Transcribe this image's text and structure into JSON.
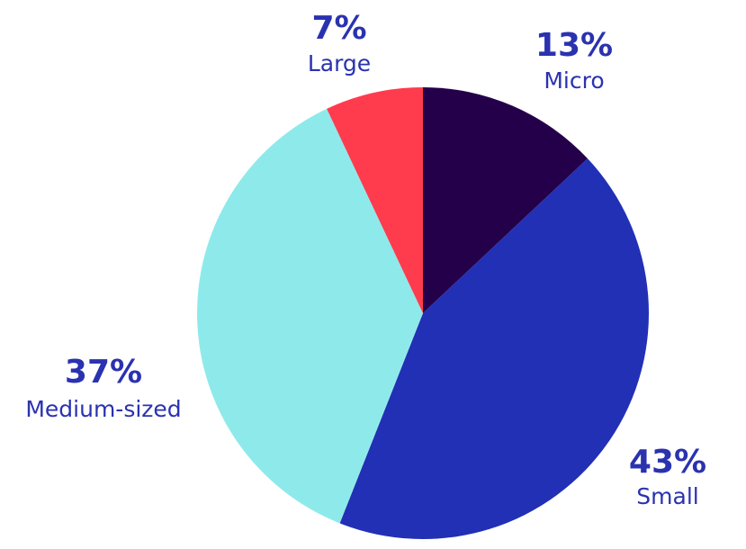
{
  "chart_data": {
    "type": "pie",
    "categories": [
      "Micro",
      "Small",
      "Medium-sized",
      "Large"
    ],
    "values": [
      13,
      43,
      37,
      7
    ],
    "value_labels": [
      "13%",
      "43%",
      "37%",
      "7%"
    ],
    "colors": [
      "#25004a",
      "#2130b5",
      "#8eeaea",
      "#ff3b4e"
    ]
  }
}
